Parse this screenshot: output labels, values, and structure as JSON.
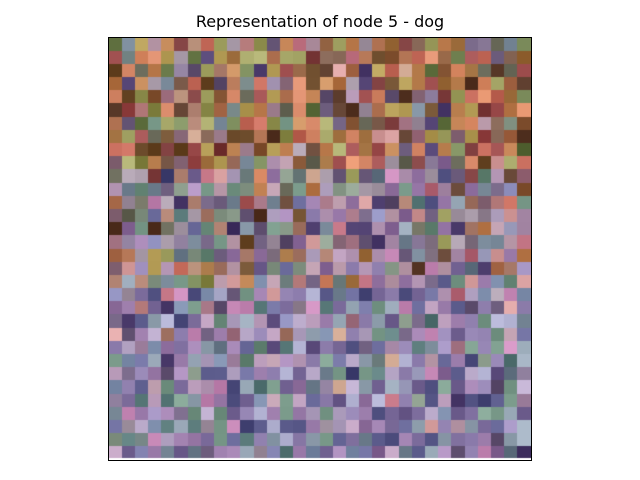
{
  "figure": {
    "title": "Representation of node 5 - dog"
  },
  "image": {
    "grid_cols": 32,
    "grid_rows": 32,
    "top_region_palette": [
      "#6b4a2a",
      "#8a5a3a",
      "#a86a4a",
      "#c48a5a",
      "#7a3a3a",
      "#9a6a3a",
      "#5a6a3a",
      "#8a8a4a",
      "#b8784a",
      "#d88a6a",
      "#7a5a4a",
      "#9a4a4a",
      "#6a6a5a",
      "#a8a86a",
      "#c46a5a",
      "#8a6a7a",
      "#5a3a2a",
      "#b8a05a",
      "#e0906a",
      "#7a8a5a"
    ],
    "mid_region_palette": [
      "#a87a6a",
      "#9a6a7a",
      "#8a7a8a",
      "#c48a8a",
      "#7a6a8a",
      "#6a5a7a",
      "#b86a7a",
      "#8a9a8a",
      "#a89aa8",
      "#5a4a6a",
      "#d8a0a0",
      "#6a7a7a",
      "#9a8aa8",
      "#7a8a9a",
      "#b898a8",
      "#4a3a6a",
      "#c8a08a",
      "#6a8a7a",
      "#8a6a9a",
      "#a88aa8"
    ],
    "bottom_region_palette": [
      "#6a6a9a",
      "#8a7aa8",
      "#9a8ab8",
      "#5a5a8a",
      "#7a8aa8",
      "#a88ab8",
      "#6a7a8a",
      "#8a9aa8",
      "#b89ab8",
      "#4a4a7a",
      "#7a6a9a",
      "#9aa8b8",
      "#c88ab8",
      "#5a7a7a",
      "#8a8ab8",
      "#a8a8c8",
      "#6a5a8a",
      "#7a9a8a",
      "#9a7aa8",
      "#b8a8c8"
    ]
  }
}
